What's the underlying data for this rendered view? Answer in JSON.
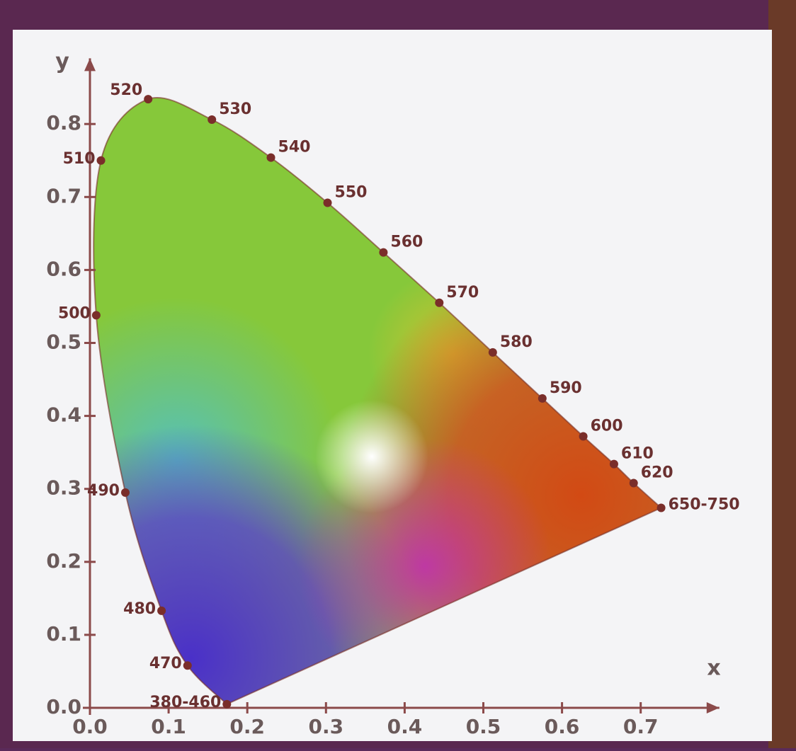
{
  "chart_data": {
    "type": "scatter",
    "x_label": "x",
    "y_label": "y",
    "labels": [
      "380-460",
      "470",
      "480",
      "490",
      "500",
      "510",
      "520",
      "530",
      "540",
      "550",
      "560",
      "570",
      "580",
      "590",
      "600",
      "610",
      "620",
      "650-750"
    ],
    "x": [
      0.174,
      0.124,
      0.091,
      0.045,
      0.008,
      0.014,
      0.074,
      0.155,
      0.23,
      0.302,
      0.373,
      0.444,
      0.512,
      0.575,
      0.627,
      0.666,
      0.691,
      0.726
    ],
    "values": [
      0.005,
      0.058,
      0.133,
      0.295,
      0.538,
      0.75,
      0.834,
      0.806,
      0.754,
      0.692,
      0.624,
      0.555,
      0.487,
      0.424,
      0.372,
      0.334,
      0.308,
      0.274
    ],
    "color": "#7a2e2a",
    "axis_color": "#8b4a4a",
    "xlim": [
      0,
      0.8
    ],
    "ylim": [
      0,
      0.89
    ],
    "xticks": [
      {
        "value": 0,
        "label": "0.0"
      },
      0.1,
      0.2,
      0.3,
      0.4,
      0.5,
      0.6,
      0.7
    ],
    "yticks": [
      {
        "value": 0,
        "label": "0.0"
      },
      0.1,
      0.2,
      0.3,
      0.4,
      0.5,
      0.6,
      0.7,
      0.8
    ]
  }
}
